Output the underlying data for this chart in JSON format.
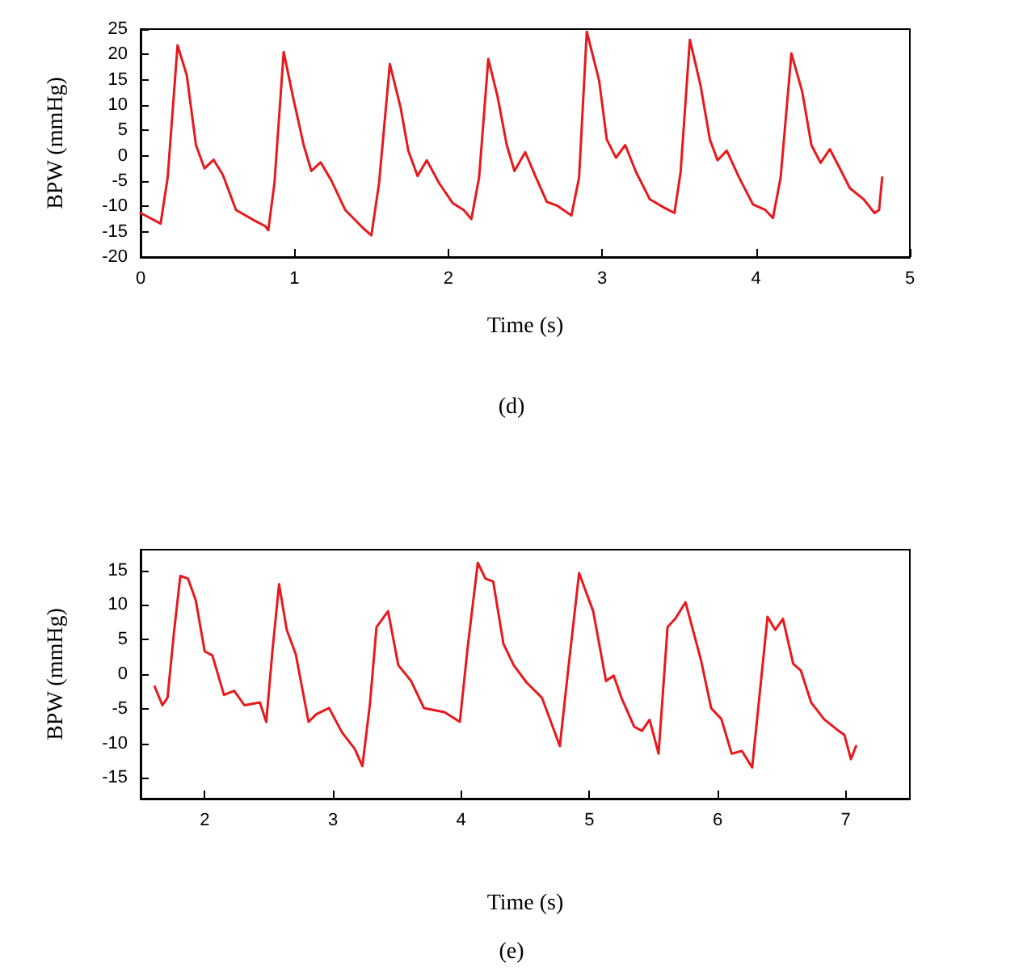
{
  "chart_data": [
    {
      "type": "line",
      "xlabel": "Time (s)",
      "ylabel": "BPW (mmHg)",
      "annotations": [
        "(d)"
      ],
      "xlim": [
        0,
        5
      ],
      "xticks": [
        0,
        1,
        2,
        3,
        4,
        5
      ],
      "ylim": [
        -20,
        25
      ],
      "yticks": [
        -20,
        -15,
        -10,
        -5,
        0,
        5,
        10,
        15,
        20,
        25
      ],
      "grid": false,
      "marker": "none",
      "line_style": "solid",
      "series": [
        {
          "color": "#e8191c",
          "x": [
            0,
            0.13,
            0.176,
            0.24,
            0.3,
            0.36,
            0.415,
            0.475,
            0.535,
            0.62,
            0.74,
            0.81,
            0.83,
            0.87,
            0.93,
            0.99,
            1.06,
            1.11,
            1.17,
            1.24,
            1.33,
            1.44,
            1.5,
            1.55,
            1.62,
            1.69,
            1.74,
            1.8,
            1.86,
            1.94,
            2.03,
            2.1,
            2.15,
            2.2,
            2.26,
            2.32,
            2.38,
            2.43,
            2.5,
            2.57,
            2.64,
            2.71,
            2.8,
            2.85,
            2.9,
            2.98,
            3.03,
            3.09,
            3.15,
            3.22,
            3.31,
            3.4,
            3.47,
            3.51,
            3.57,
            3.64,
            3.7,
            3.75,
            3.81,
            3.89,
            3.98,
            4.06,
            4.11,
            4.16,
            4.23,
            4.3,
            4.36,
            4.42,
            4.48,
            4.54,
            4.61,
            4.7,
            4.77,
            4.8,
            4.82
          ],
          "values": [
            -11.3,
            -13.4,
            -4.3,
            21.8,
            15.9,
            2.1,
            -2.5,
            -0.8,
            -3.8,
            -10.7,
            -12.8,
            -13.9,
            -14.7,
            -5.4,
            20.5,
            11.7,
            2.1,
            -3,
            -1.3,
            -4.9,
            -10.7,
            -14.1,
            -15.7,
            -5.4,
            18.1,
            9.5,
            1,
            -4,
            -0.9,
            -5.4,
            -9.4,
            -10.7,
            -12.5,
            -4.3,
            19.1,
            11.7,
            2.1,
            -3,
            0.7,
            -4.3,
            -9.1,
            -9.9,
            -11.8,
            -4.3,
            24.5,
            14.9,
            3.2,
            -0.4,
            2.1,
            -3.2,
            -8.6,
            -10.2,
            -11.3,
            -3.2,
            22.9,
            13.8,
            3.2,
            -0.9,
            1,
            -4.3,
            -9.6,
            -10.7,
            -12.3,
            -4.3,
            20.2,
            12.7,
            2.1,
            -1.4,
            1.3,
            -2.2,
            -6.4,
            -8.6,
            -11.3,
            -10.7,
            -4.3
          ]
        }
      ]
    },
    {
      "type": "line",
      "xlabel": "Time (s)",
      "ylabel": "BPW (mmHg)",
      "annotations": [
        "(e)"
      ],
      "xlim": [
        1.5,
        7.5
      ],
      "xticks": [
        2,
        3,
        4,
        5,
        6,
        7
      ],
      "ylim": [
        -18,
        18
      ],
      "yticks": [
        -15,
        -10,
        -5,
        0,
        5,
        10,
        15
      ],
      "grid": false,
      "marker": "none",
      "line_style": "solid",
      "series": [
        {
          "color": "#e8191c",
          "x": [
            1.61,
            1.67,
            1.71,
            1.76,
            1.81,
            1.87,
            1.93,
            2,
            2.06,
            2.15,
            2.23,
            2.31,
            2.43,
            2.48,
            2.53,
            2.58,
            2.64,
            2.71,
            2.81,
            2.87,
            2.97,
            3.07,
            3.17,
            3.23,
            3.29,
            3.34,
            3.43,
            3.51,
            3.61,
            3.71,
            3.87,
            3.99,
            4.05,
            4.13,
            4.19,
            4.25,
            4.33,
            4.41,
            4.51,
            4.63,
            4.77,
            4.83,
            4.92,
            5.03,
            5.13,
            5.19,
            5.25,
            5.35,
            5.41,
            5.47,
            5.54,
            5.61,
            5.67,
            5.75,
            5.87,
            5.95,
            6.03,
            6.11,
            6.19,
            6.27,
            6.33,
            6.39,
            6.45,
            6.51,
            6.59,
            6.65,
            6.73,
            6.83,
            6.93,
            6.99,
            7.04,
            7.08
          ],
          "values": [
            -1.8,
            -4.5,
            -3.4,
            6,
            14.2,
            13.8,
            10.7,
            3.3,
            2.7,
            -3,
            -2.4,
            -4.5,
            -4.1,
            -6.9,
            3.7,
            13,
            6.4,
            2.9,
            -6.9,
            -5.8,
            -4.9,
            -8.4,
            -10.8,
            -13.3,
            -4.1,
            6.8,
            9.1,
            1.3,
            -1,
            -4.9,
            -5.5,
            -6.9,
            3.7,
            16.1,
            13.8,
            13.4,
            4.4,
            1.3,
            -1.2,
            -3.4,
            -10.4,
            -0.2,
            14.6,
            9.1,
            -1,
            -0.2,
            -3.4,
            -7.6,
            -8.2,
            -6.6,
            -11.5,
            6.8,
            8,
            10.4,
            2.1,
            -4.9,
            -6.5,
            -11.5,
            -11.1,
            -13.5,
            -2.6,
            8.3,
            6.4,
            8,
            1.5,
            0.5,
            -4.1,
            -6.5,
            -8,
            -8.8,
            -12.3,
            -10.4
          ]
        }
      ]
    }
  ]
}
